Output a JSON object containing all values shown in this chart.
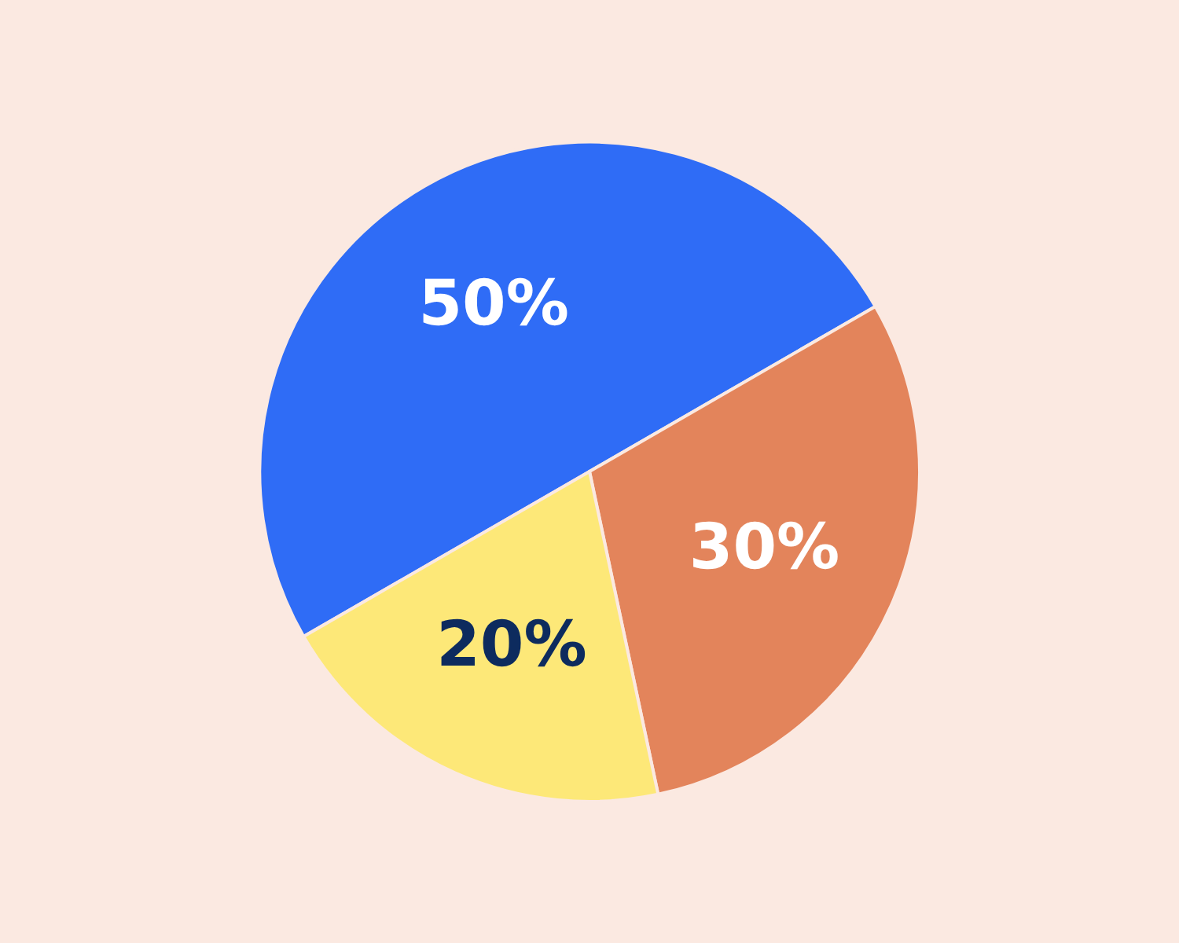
{
  "chart_data": {
    "type": "pie",
    "categories": [
      null,
      null,
      null
    ],
    "values": [
      50,
      30,
      20
    ],
    "colors": [
      "#2f6cf6",
      "#e3845b",
      "#fde878"
    ],
    "value_labels": [
      "50%",
      "30%",
      "20%"
    ]
  }
}
